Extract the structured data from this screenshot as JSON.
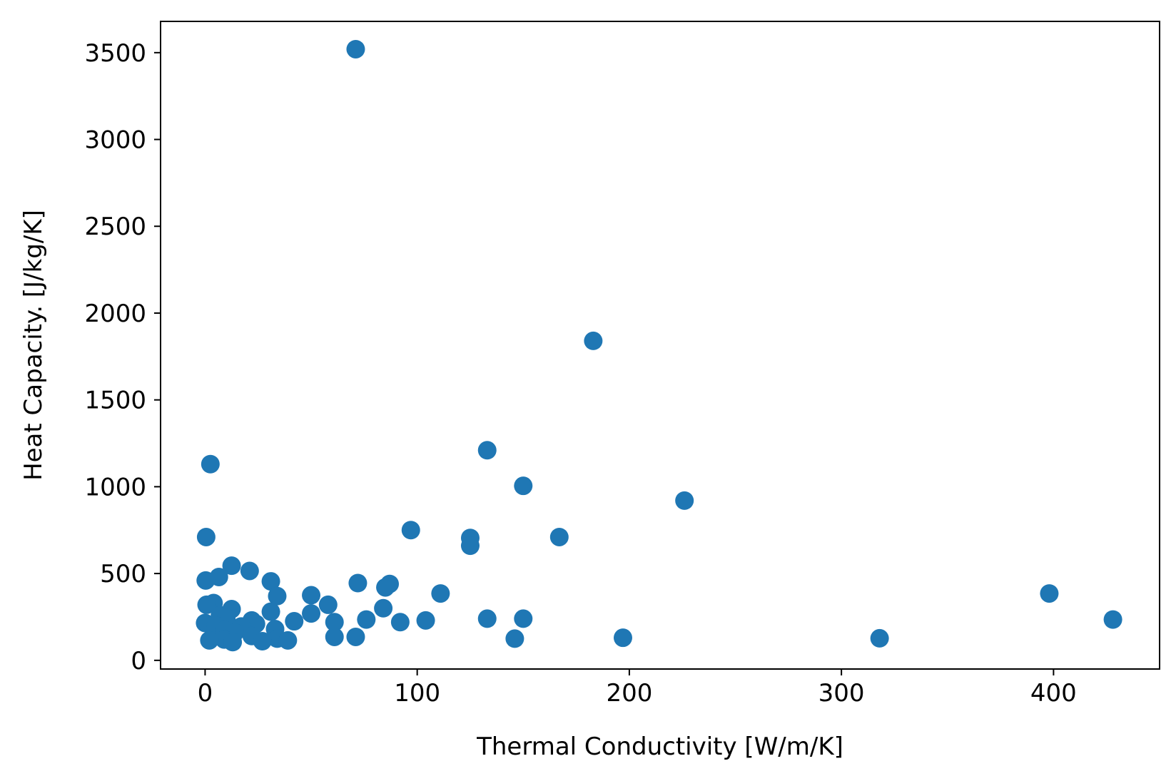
{
  "chart_data": {
    "type": "scatter",
    "title": "",
    "xlabel": "Thermal Conductivity [W/m/K]",
    "ylabel": "Heat Capacity. [J/kg/K]",
    "xlim": [
      -21,
      450
    ],
    "ylim": [
      -50,
      3680
    ],
    "xticks": [
      0,
      100,
      200,
      300,
      400
    ],
    "yticks": [
      0,
      500,
      1000,
      1500,
      2000,
      2500,
      3000,
      3500
    ],
    "grid": false,
    "marker_color": "#1f77b4",
    "series": [
      {
        "points": [
          [
            71,
            3520
          ],
          [
            183,
            1840
          ],
          [
            133,
            1210
          ],
          [
            2.5,
            1130
          ],
          [
            150,
            1005
          ],
          [
            226,
            920
          ],
          [
            97,
            750
          ],
          [
            125,
            705
          ],
          [
            167,
            710
          ],
          [
            0.5,
            710
          ],
          [
            125,
            660
          ],
          [
            12.5,
            545
          ],
          [
            21,
            515
          ],
          [
            6.5,
            480
          ],
          [
            0.3,
            460
          ],
          [
            31,
            455
          ],
          [
            72,
            445
          ],
          [
            87,
            440
          ],
          [
            85,
            420
          ],
          [
            111,
            385
          ],
          [
            398,
            385
          ],
          [
            50,
            375
          ],
          [
            34,
            370
          ],
          [
            4,
            330
          ],
          [
            0.7,
            320
          ],
          [
            58,
            320
          ],
          [
            84,
            300
          ],
          [
            12.5,
            295
          ],
          [
            31,
            280
          ],
          [
            50,
            270
          ],
          [
            7,
            260
          ],
          [
            10,
            245
          ],
          [
            150,
            240
          ],
          [
            133,
            240
          ],
          [
            76,
            235
          ],
          [
            428,
            235
          ],
          [
            104,
            230
          ],
          [
            22,
            230
          ],
          [
            42,
            225
          ],
          [
            61,
            220
          ],
          [
            92,
            220
          ],
          [
            0,
            215
          ],
          [
            24,
            210
          ],
          [
            5,
            200
          ],
          [
            17,
            195
          ],
          [
            33,
            180
          ],
          [
            9,
            175
          ],
          [
            14,
            160
          ],
          [
            22,
            140
          ],
          [
            61,
            135
          ],
          [
            71,
            135
          ],
          [
            197,
            130
          ],
          [
            318,
            127
          ],
          [
            146,
            125
          ],
          [
            34,
            125
          ],
          [
            9,
            120
          ],
          [
            2,
            115
          ],
          [
            39,
            115
          ],
          [
            27,
            110
          ],
          [
            13,
            105
          ]
        ]
      }
    ]
  }
}
